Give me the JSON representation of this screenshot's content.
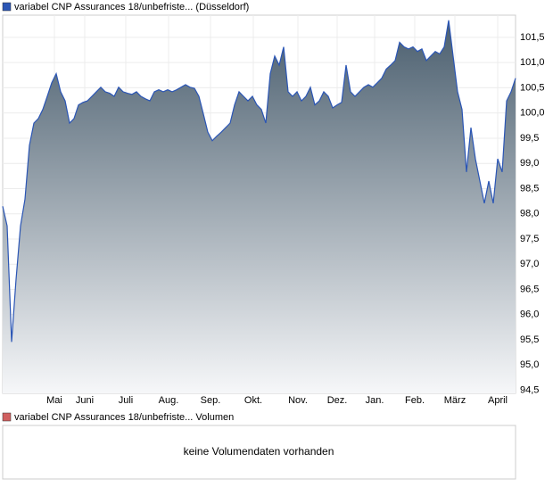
{
  "chart_data": {
    "type": "area",
    "legend": "variabel CNP Assurances 18/unbefriste... (Düsseldorf)",
    "series": [
      {
        "name": "variabel CNP Assurances 18/unbefriste... (Düsseldorf)",
        "color": "#2a55b5",
        "values": [
          98.15,
          97.76,
          95.46,
          96.7,
          97.76,
          98.29,
          99.36,
          99.8,
          99.89,
          100.07,
          100.33,
          100.6,
          100.78,
          100.42,
          100.24,
          99.8,
          99.89,
          100.16,
          100.21,
          100.24,
          100.33,
          100.42,
          100.51,
          100.42,
          100.39,
          100.33,
          100.51,
          100.42,
          100.39,
          100.37,
          100.42,
          100.33,
          100.28,
          100.24,
          100.42,
          100.46,
          100.42,
          100.46,
          100.42,
          100.46,
          100.51,
          100.56,
          100.51,
          100.49,
          100.33,
          99.98,
          99.62,
          99.45,
          99.54,
          99.62,
          99.71,
          99.8,
          100.16,
          100.42,
          100.33,
          100.24,
          100.33,
          100.16,
          100.07,
          99.8,
          100.78,
          101.13,
          100.95,
          101.31,
          100.42,
          100.33,
          100.42,
          100.24,
          100.33,
          100.51,
          100.16,
          100.24,
          100.42,
          100.33,
          100.1,
          100.16,
          100.21,
          100.95,
          100.42,
          100.33,
          100.42,
          100.51,
          100.56,
          100.51,
          100.6,
          100.69,
          100.87,
          100.95,
          101.04,
          101.4,
          101.31,
          101.27,
          101.31,
          101.22,
          101.27,
          101.04,
          101.13,
          101.22,
          101.17,
          101.31,
          101.84,
          101.13,
          100.42,
          100.07,
          98.83,
          99.71,
          99.09,
          98.65,
          98.21,
          98.65,
          98.21,
          99.09,
          98.83,
          100.24,
          100.42,
          100.69
        ]
      }
    ],
    "xlim": [
      0,
      115
    ],
    "xticks": [
      {
        "value": 11.6,
        "label": "Mai"
      },
      {
        "value": 18.4,
        "label": "Juni"
      },
      {
        "value": 27.6,
        "label": "Juli"
      },
      {
        "value": 37.2,
        "label": "Aug."
      },
      {
        "value": 46.6,
        "label": "Sep."
      },
      {
        "value": 56.2,
        "label": "Okt."
      },
      {
        "value": 66.2,
        "label": "Nov."
      },
      {
        "value": 75,
        "label": "Dez."
      },
      {
        "value": 83.4,
        "label": "Jan."
      },
      {
        "value": 92.4,
        "label": "Feb."
      },
      {
        "value": 101.4,
        "label": "März"
      },
      {
        "value": 111,
        "label": "April"
      }
    ],
    "ylim": [
      94.44,
      101.94
    ],
    "yticks": [
      {
        "value": 94.5,
        "label": "94,5"
      },
      {
        "value": 95,
        "label": "95,0"
      },
      {
        "value": 95.5,
        "label": "95,5"
      },
      {
        "value": 96,
        "label": "96,0"
      },
      {
        "value": 96.5,
        "label": "96,5"
      },
      {
        "value": 97,
        "label": "97,0"
      },
      {
        "value": 97.5,
        "label": "97,5"
      },
      {
        "value": 98,
        "label": "98,0"
      },
      {
        "value": 98.5,
        "label": "98,5"
      },
      {
        "value": 99,
        "label": "99,0"
      },
      {
        "value": 99.5,
        "label": "99,5"
      },
      {
        "value": 100,
        "label": "100,0"
      },
      {
        "value": 100.5,
        "label": "100,5"
      },
      {
        "value": 101,
        "label": "101,0"
      },
      {
        "value": 101.5,
        "label": "101,5"
      }
    ],
    "grid": true
  },
  "volume_panel": {
    "legend": "variabel CNP Assurances 18/unbefriste... Volumen",
    "message": "keine Volumendaten vorhanden"
  }
}
